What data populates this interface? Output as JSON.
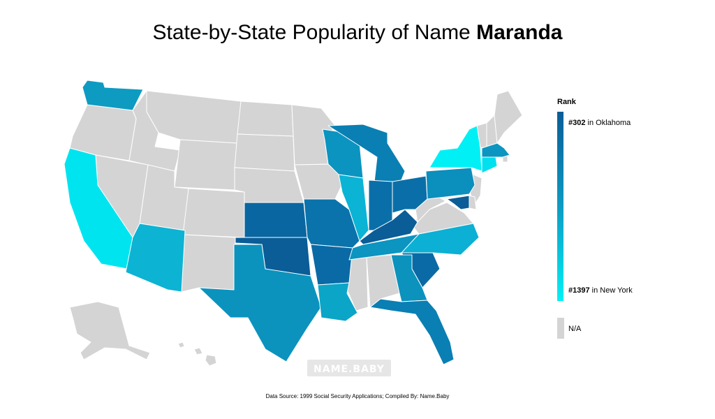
{
  "title": {
    "prefix": "State-by-State Popularity of Name",
    "name": "Maranda"
  },
  "legend": {
    "title": "Rank",
    "top_rank": "#302",
    "top_state": "in Oklahoma",
    "bottom_rank": "#1397",
    "bottom_state": "in New York",
    "na_label": "N/A"
  },
  "colors": {
    "na": "#d4d4d4",
    "rank_high": "#0a5d97",
    "rank_mid": "#0d9bc2",
    "rank_low": "#00f0f5"
  },
  "watermark": "NAME.BABY",
  "footer": "Data Source: 1999 Social Security Applications; Compiled By: Name.Baby",
  "chart_data": {
    "type": "choropleth",
    "metric": "Rank",
    "best": {
      "state": "Oklahoma",
      "rank": 302
    },
    "worst": {
      "state": "New York",
      "rank": 1397
    },
    "states_with_data": [
      "Oklahoma",
      "Kansas",
      "Arkansas",
      "Missouri",
      "Kentucky",
      "Indiana",
      "Ohio",
      "South Carolina",
      "Maryland",
      "Michigan",
      "Wisconsin",
      "Washington",
      "Massachusetts",
      "Pennsylvania",
      "Texas",
      "Georgia",
      "Florida",
      "Louisiana",
      "Tennessee",
      "North Carolina",
      "Arizona",
      "Illinois",
      "California",
      "New York",
      "Connecticut"
    ],
    "na_states": [
      "Oregon",
      "Idaho",
      "Montana",
      "Wyoming",
      "Nevada",
      "Utah",
      "Colorado",
      "New Mexico",
      "North Dakota",
      "South Dakota",
      "Nebraska",
      "Minnesota",
      "Iowa",
      "Mississippi",
      "Alabama",
      "Virginia",
      "West Virginia",
      "New Jersey",
      "Delaware",
      "Vermont",
      "New Hampshire",
      "Maine",
      "Rhode Island",
      "Alaska",
      "Hawaii"
    ]
  }
}
